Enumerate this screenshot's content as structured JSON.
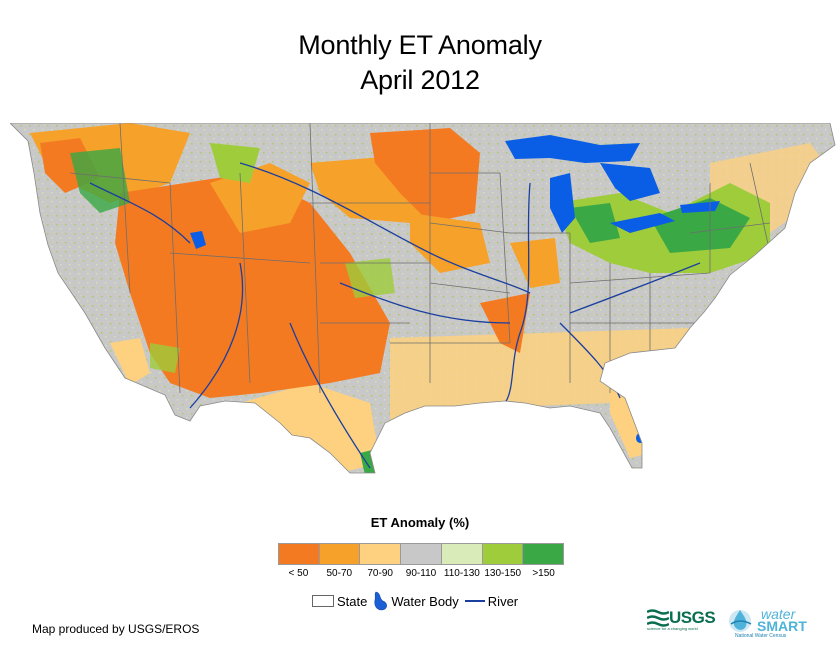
{
  "title": {
    "line1": "Monthly ET Anomaly",
    "line2": "April 2012"
  },
  "legend": {
    "title": "ET Anomaly (%)",
    "classes": [
      {
        "label": "< 50",
        "color": "#f47a22"
      },
      {
        "label": "50-70",
        "color": "#f6a12a"
      },
      {
        "label": "70-90",
        "color": "#fdd17f"
      },
      {
        "label": "90-110",
        "color": "#c8c8c8"
      },
      {
        "label": "110-130",
        "color": "#d9ebb8"
      },
      {
        "label": "130-150",
        "color": "#9fcc3b"
      },
      {
        "label": ">150",
        "color": "#3aa845"
      }
    ]
  },
  "keys": {
    "state": "State",
    "water_body": "Water Body",
    "river": "River"
  },
  "credit": "Map produced by USGS/EROS",
  "logos": {
    "usgs": "USGS",
    "usgs_tagline": "science for a changing world",
    "ws_water": "water",
    "ws_smart": "SMART",
    "ws_tagline": "National Water Census"
  },
  "colors": {
    "water": "#0a5ee6",
    "river": "#1a3fa0",
    "state_line": "#6e6e6e"
  }
}
